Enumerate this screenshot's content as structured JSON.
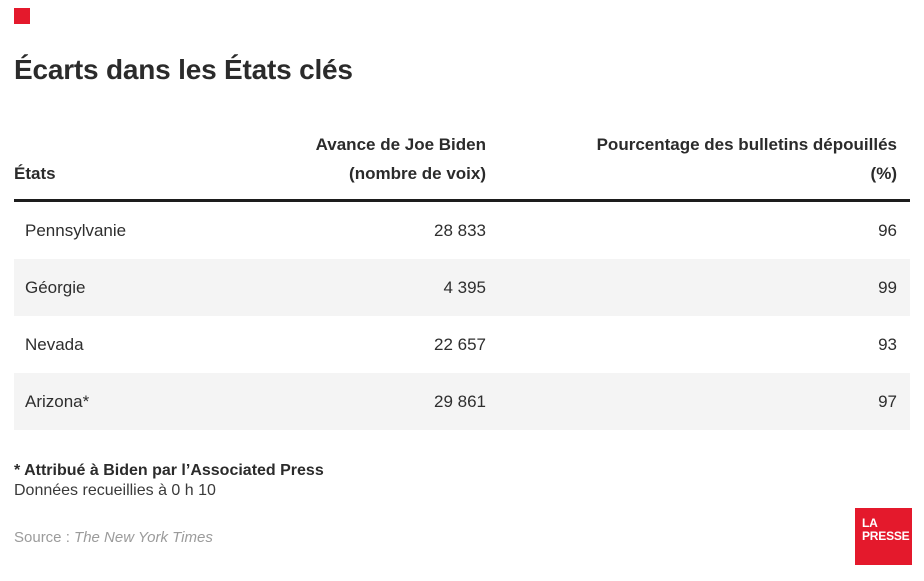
{
  "title": "Écarts dans les États clés",
  "table": {
    "header": {
      "col1": "États",
      "col2_line1": "Avance de Joe Biden",
      "col2_line2": "(nombre de voix)",
      "col3_line1": "Pourcentage des bulletins dépouillés",
      "col3_line2": "(%)"
    },
    "rows": [
      {
        "state": "Pennsylvanie",
        "lead": "28 833",
        "pct": "96"
      },
      {
        "state": "Géorgie",
        "lead": "4 395",
        "pct": "99"
      },
      {
        "state": "Nevada",
        "lead": "22 657",
        "pct": "93"
      },
      {
        "state": "Arizona*",
        "lead": "29 861",
        "pct": "97"
      }
    ]
  },
  "notes": {
    "asterisk": "* Attribué à Biden par l’Associated Press",
    "collected": "Données recueillies à 0 h 10"
  },
  "source": {
    "prefix": "Source : ",
    "name": "The New York Times"
  },
  "logo": {
    "line1": "LA",
    "line2": "PRESSE"
  },
  "colors": {
    "brand_red": "#e4192c",
    "row_alt": "#f4f4f4",
    "text": "#2e2e2e",
    "muted": "#9b9b9b",
    "rule": "#1d1d1d"
  },
  "chart_data": {
    "type": "table",
    "title": "Écarts dans les États clés",
    "columns": [
      "États",
      "Avance de Joe Biden (nombre de voix)",
      "Pourcentage des bulletins dépouillés (%)"
    ],
    "rows": [
      [
        "Pennsylvanie",
        28833,
        96
      ],
      [
        "Géorgie",
        4395,
        99
      ],
      [
        "Nevada",
        22657,
        93
      ],
      [
        "Arizona*",
        29861,
        97
      ]
    ],
    "notes": [
      "* Attribué à Biden par l’Associated Press",
      "Données recueillies à 0 h 10"
    ],
    "source": "The New York Times",
    "legend_position": "none",
    "grid": false
  }
}
